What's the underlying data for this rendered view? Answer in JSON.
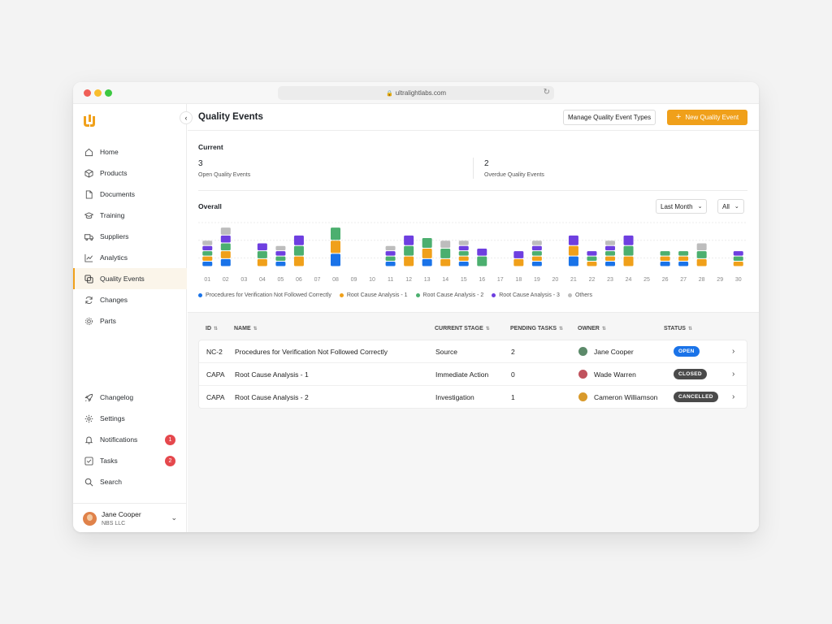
{
  "browser": {
    "url": "ultralightlabs.com"
  },
  "sidebar": {
    "items": [
      {
        "label": "Home",
        "icon": "home-icon"
      },
      {
        "label": "Products",
        "icon": "box-icon"
      },
      {
        "label": "Documents",
        "icon": "document-icon"
      },
      {
        "label": "Training",
        "icon": "graduation-cap-icon"
      },
      {
        "label": "Suppliers",
        "icon": "truck-icon"
      },
      {
        "label": "Analytics",
        "icon": "chart-line-icon"
      },
      {
        "label": "Quality Events",
        "icon": "copy-icon",
        "active": true
      },
      {
        "label": "Changes",
        "icon": "refresh-icon"
      },
      {
        "label": "Parts",
        "icon": "cog-icon"
      }
    ],
    "bottom_items": [
      {
        "label": "Changelog",
        "icon": "rocket-icon"
      },
      {
        "label": "Settings",
        "icon": "gear-icon"
      },
      {
        "label": "Notifications",
        "icon": "bell-icon",
        "badge": "1"
      },
      {
        "label": "Tasks",
        "icon": "checkbox-icon",
        "badge": "2"
      },
      {
        "label": "Search",
        "icon": "search-icon"
      }
    ],
    "user": {
      "name": "Jane Cooper",
      "org": "NBS LLC"
    }
  },
  "header": {
    "title": "Quality Events",
    "manage_label": "Manage Quality Event Types",
    "new_label": "New Quality Event"
  },
  "current": {
    "label": "Current",
    "open_count": "3",
    "open_label": "Open Quality Events",
    "overdue_count": "2",
    "overdue_label": "Overdue Quality Events"
  },
  "overall": {
    "label": "Overall",
    "period": "Last Month",
    "filter": "All"
  },
  "colors": {
    "blue": "#1a73e8",
    "orange": "#f0a01a",
    "green": "#4caf6f",
    "purple": "#6e3fe0",
    "gray": "#bdbdbd"
  },
  "chart_data": {
    "type": "bar",
    "stacked": true,
    "categories": [
      "01",
      "02",
      "03",
      "04",
      "05",
      "06",
      "07",
      "08",
      "09",
      "10",
      "11",
      "12",
      "13",
      "14",
      "15",
      "16",
      "17",
      "18",
      "19",
      "20",
      "21",
      "22",
      "23",
      "24",
      "25",
      "26",
      "27",
      "28",
      "29",
      "30"
    ],
    "series": [
      {
        "name": "Procedures for Verification Not Followed Correctly",
        "color": "#1a73e8",
        "values": [
          1,
          1.5,
          0,
          0,
          1,
          0,
          0,
          2.5,
          0,
          0,
          1,
          0,
          1.5,
          0,
          1,
          0,
          0,
          0,
          1,
          0,
          2,
          0,
          1,
          0,
          0,
          1,
          1,
          0,
          0,
          0
        ]
      },
      {
        "name": "Root Cause Analysis - 1",
        "color": "#f0a01a",
        "values": [
          1,
          1.5,
          0,
          1.5,
          0,
          2,
          0,
          2.5,
          0,
          0,
          0,
          2,
          2,
          1.5,
          1,
          0,
          0,
          1.5,
          1,
          0,
          2,
          1,
          1,
          2,
          0,
          1,
          1,
          1.5,
          0,
          1
        ]
      },
      {
        "name": "Root Cause Analysis - 2",
        "color": "#4caf6f",
        "values": [
          1,
          1.5,
          0,
          1.5,
          1,
          2,
          0,
          2.5,
          0,
          0,
          1,
          2,
          2,
          2,
          1,
          2,
          0,
          0,
          1,
          0,
          0,
          1,
          1,
          2,
          0,
          1,
          1,
          1.5,
          0,
          1
        ]
      },
      {
        "name": "Root Cause Analysis - 3",
        "color": "#6e3fe0",
        "values": [
          1,
          1.5,
          0,
          1.5,
          1,
          2,
          0,
          0,
          0,
          0,
          1,
          2,
          0,
          0,
          1,
          1.5,
          0,
          1.5,
          1,
          0,
          2,
          1,
          1,
          2,
          0,
          0,
          0,
          0,
          0,
          1
        ]
      },
      {
        "name": "Others",
        "color": "#bdbdbd",
        "values": [
          1,
          1.5,
          0,
          0,
          1,
          0,
          0,
          0,
          0,
          0,
          1,
          0,
          0,
          1.5,
          1,
          0,
          0,
          0,
          1,
          0,
          0,
          0,
          1,
          0,
          0,
          0,
          0,
          1.5,
          0,
          0
        ]
      }
    ],
    "ylim": [
      0,
      9
    ]
  },
  "table": {
    "headers": [
      "ID",
      "NAME",
      "CURRENT STAGE",
      "PENDING TASKS",
      "OWNER",
      "STATUS"
    ],
    "rows": [
      {
        "id": "NC-2",
        "name": "Procedures for Verification Not Followed Correctly",
        "stage": "Source",
        "pending": "2",
        "owner": "Jane Cooper",
        "status": "OPEN",
        "status_color": "#1a73e8"
      },
      {
        "id": "CAPA",
        "name": "Root Cause Analysis - 1",
        "stage": "Immediate Action",
        "pending": "0",
        "owner": "Wade Warren",
        "status": "CLOSED",
        "status_color": "#4a4a4a"
      },
      {
        "id": "CAPA",
        "name": "Root Cause Analysis - 2",
        "stage": "Investigation",
        "pending": "1",
        "owner": "Cameron Williamson",
        "status": "CANCELLED",
        "status_color": "#4a4a4a"
      }
    ]
  }
}
